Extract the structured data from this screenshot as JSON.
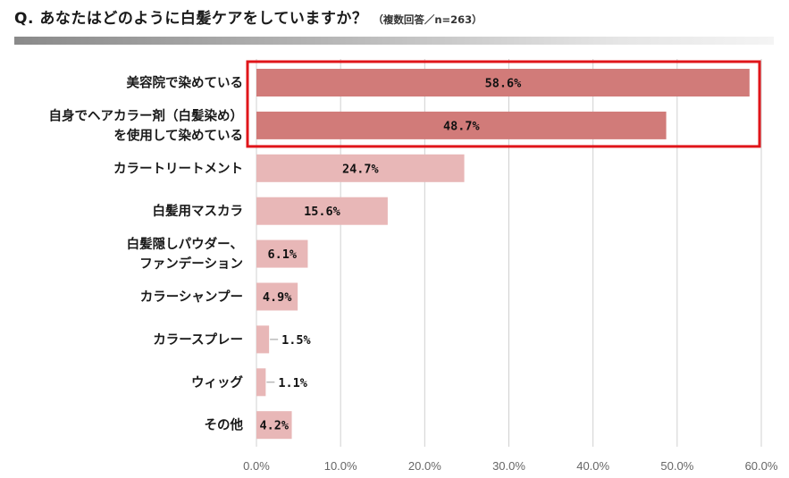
{
  "header": {
    "question": "Q. あなたはどのように白髪ケアをしていますか？",
    "note": "（複数回答／n=263）"
  },
  "colors": {
    "highlight_bar": "#d17b79",
    "normal_bar": "#e8b7b7",
    "highlight_box": "#e0151a",
    "gridline": "#d0d0d0"
  },
  "chart_data": {
    "type": "bar",
    "orientation": "horizontal",
    "categories": [
      [
        "美容院で染めている"
      ],
      [
        "自身でヘアカラー剤（白髪染め）",
        "を使用して染めている"
      ],
      [
        "カラートリートメント"
      ],
      [
        "白髪用マスカラ"
      ],
      [
        "白髪隠しパウダー、",
        "ファンデーション"
      ],
      [
        "カラーシャンプー"
      ],
      [
        "カラースプレー"
      ],
      [
        "ウィッグ"
      ],
      [
        "その他"
      ]
    ],
    "values": [
      58.6,
      48.7,
      24.7,
      15.6,
      6.1,
      4.9,
      1.5,
      1.1,
      4.2
    ],
    "value_labels": [
      "58.6%",
      "48.7%",
      "24.7%",
      "15.6%",
      "6.1%",
      "4.9%",
      "1.5%",
      "1.1%",
      "4.2%"
    ],
    "highlighted": [
      true,
      true,
      false,
      false,
      false,
      false,
      false,
      false,
      false
    ],
    "xlim": [
      0,
      60
    ],
    "xticks": [
      0,
      10,
      20,
      30,
      40,
      50,
      60
    ],
    "xtick_labels": [
      "0.0%",
      "10.0%",
      "20.0%",
      "30.0%",
      "40.0%",
      "50.0%",
      "60.0%"
    ],
    "grid": true
  }
}
